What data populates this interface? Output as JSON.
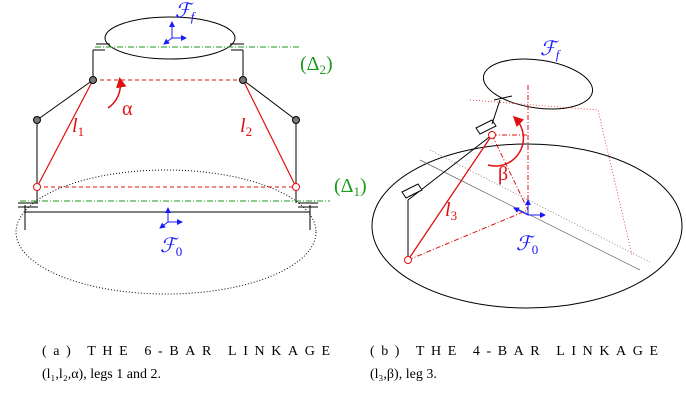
{
  "panel_a": {
    "frame_top": {
      "text": "ℱ",
      "sub": "f"
    },
    "frame_base": {
      "text": "ℱ",
      "sub": "0"
    },
    "delta2": {
      "text": "(Δ",
      "sub": "2",
      "tail": ")"
    },
    "delta1": {
      "text": "(Δ",
      "sub": "1",
      "tail": ")"
    },
    "angle": "α",
    "leg1": {
      "text": "l",
      "sub": "1"
    },
    "leg2": {
      "text": "l",
      "sub": "2"
    },
    "caption": [
      "(a) THE 6-BAR LINKAGE",
      "(l₁,l₂,α), legs 1 and 2."
    ]
  },
  "panel_b": {
    "frame_top": {
      "text": "ℱ",
      "sub": "f"
    },
    "frame_base": {
      "text": "ℱ",
      "sub": "0"
    },
    "angle": "β",
    "leg3": {
      "text": "l",
      "sub": "3"
    },
    "caption": [
      "(b) THE 4-BAR LINKAGE",
      "(l₃,β), leg 3."
    ]
  }
}
